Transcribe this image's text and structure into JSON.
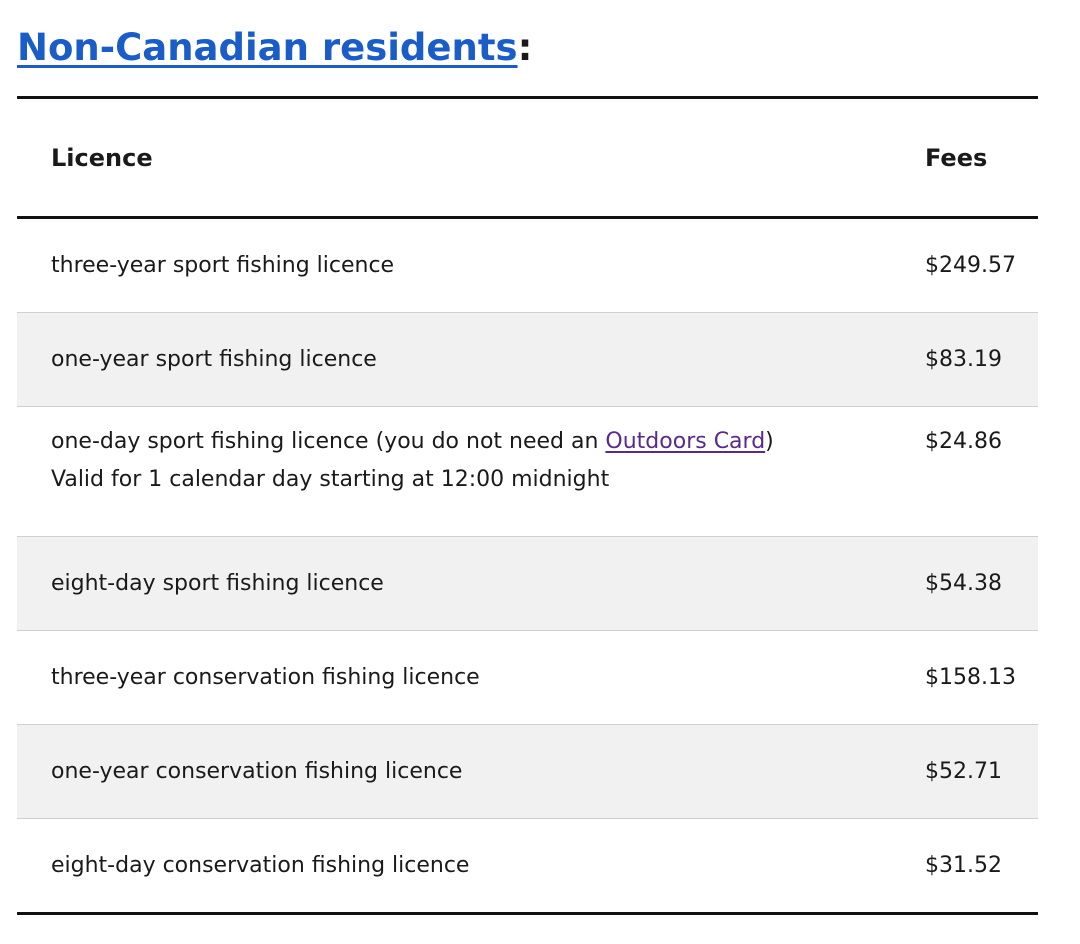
{
  "heading": {
    "link_text": "Non-Canadian residents",
    "suffix": ":"
  },
  "table": {
    "headers": {
      "licence": "Licence",
      "fees": "Fees"
    },
    "rows": [
      {
        "licence": "three-year sport fishing licence",
        "fee": "$249.57"
      },
      {
        "licence": "one-year sport fishing licence",
        "fee": "$83.19"
      },
      {
        "licence_prefix": "one-day sport fishing licence (you do not need an ",
        "licence_link": "Outdoors Card",
        "licence_suffix": ")",
        "licence_note": "Valid for 1 calendar day starting at 12:00 midnight",
        "fee": "$24.86"
      },
      {
        "licence": "eight-day sport fishing licence",
        "fee": "$54.38"
      },
      {
        "licence": "three-year conservation fishing licence",
        "fee": "$158.13"
      },
      {
        "licence": "one-year conservation fishing licence",
        "fee": "$52.71"
      },
      {
        "licence": "eight-day conservation fishing licence",
        "fee": "$31.52"
      }
    ]
  },
  "colors": {
    "heading_link": "#1a5cc8",
    "visited_link": "#5a2a8a",
    "row_shade": "#f1f1f1",
    "rule": "#111111"
  }
}
